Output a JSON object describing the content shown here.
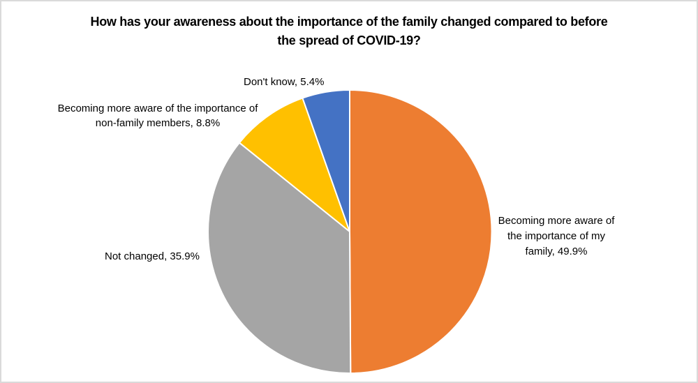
{
  "chart_data": {
    "type": "pie",
    "title": "How has your awareness about the importance of the family changed compared to before the spread of COVID-19?",
    "start_angle_deg": 0,
    "direction": "clockwise",
    "legend": "none",
    "data_labels": "category name, percentage",
    "units": "percent",
    "total": 100,
    "slices": [
      {
        "id": "my-family",
        "label": "Becoming more aware of the importance of my family",
        "value": 49.9,
        "color": "#ED7D31"
      },
      {
        "id": "not-changed",
        "label": "Not changed",
        "value": 35.9,
        "color": "#A5A5A5"
      },
      {
        "id": "non-family",
        "label": "Becoming more aware of the importance of non-family members",
        "value": 8.8,
        "color": "#FFC000"
      },
      {
        "id": "dont-know",
        "label": "Don't know",
        "value": 5.4,
        "color": "#4472C4"
      }
    ]
  },
  "title": {
    "lines": [
      "How has your awareness about the importance of the family changed compared to before",
      "the spread of COVID-19?"
    ]
  },
  "callouts": {
    "dont_know": {
      "lines": [
        "Don't know, 5.4%"
      ]
    },
    "non_family": {
      "lines": [
        "Becoming more aware of the importance of",
        "non-family members, 8.8%"
      ]
    },
    "not_changed": {
      "lines": [
        "Not changed, 35.9%"
      ]
    },
    "my_family": {
      "lines": [
        "Becoming more aware of",
        "the importance of my",
        "family, 49.9%"
      ]
    }
  },
  "colors": {
    "slice_border": "#ffffff",
    "canvas_border": "#dadada",
    "text": "#000000"
  }
}
